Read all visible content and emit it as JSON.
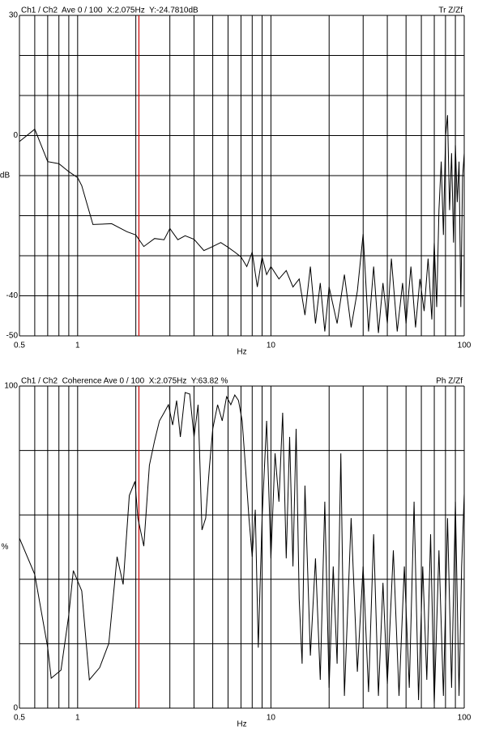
{
  "chart_data": [
    {
      "type": "line",
      "header_left": "Ch1 / Ch2  Ave 0 / 100  X:2.075Hz  Y:-24.7810dB",
      "header_right": "Tr Z/Zf",
      "xlabel": "Hz",
      "ylabel": "dB",
      "log_x": true,
      "color": "#000000",
      "cursor_x": 2.075,
      "cursor_color": "#cc0000",
      "xlim": [
        0.5,
        100
      ],
      "ylim": [
        -50,
        30
      ],
      "xticks": [
        0.5,
        1,
        10,
        100
      ],
      "yticks": [
        30,
        0,
        -40,
        -50
      ],
      "xgrid": [
        0.6,
        0.7,
        0.8,
        0.9,
        1,
        2,
        3,
        4,
        5,
        6,
        7,
        8,
        9,
        10,
        20,
        30,
        40,
        50,
        60,
        70,
        80,
        90,
        100
      ],
      "ygrid": [
        30,
        20,
        10,
        0,
        -10,
        -20,
        -30,
        -40,
        -50
      ],
      "x": [
        0.5,
        0.6,
        0.7,
        0.8,
        0.9,
        1.0,
        1.05,
        1.2,
        1.5,
        1.8,
        2.0,
        2.2,
        2.5,
        2.8,
        3.0,
        3.3,
        3.6,
        4.0,
        4.5,
        5.0,
        5.5,
        6.0,
        6.5,
        7,
        7.5,
        8,
        8.5,
        9,
        9.5,
        10,
        11,
        12,
        13,
        14,
        15,
        16,
        17,
        18,
        19,
        20,
        22,
        24,
        26,
        28,
        30,
        32,
        34,
        36,
        38,
        40,
        42,
        45,
        48,
        50,
        53,
        56,
        59,
        62,
        65,
        68,
        70,
        72,
        74,
        76,
        78,
        80,
        82,
        84,
        86,
        88,
        90,
        92,
        94,
        96,
        98,
        100
      ],
      "values": [
        -1.5,
        1.6,
        -6.5,
        -7,
        -9,
        -10.5,
        -12.5,
        -22.2,
        -22,
        -24,
        -24.8,
        -27.7,
        -25.7,
        -26,
        -23.2,
        -26,
        -25,
        -25.9,
        -28.7,
        -27.7,
        -26.7,
        -27.9,
        -29.1,
        -30.3,
        -32.7,
        -29.1,
        -37.8,
        -30.3,
        -34.7,
        -32.7,
        -35.8,
        -33.7,
        -37.8,
        -35.8,
        -44.8,
        -32.7,
        -46.9,
        -36.8,
        -48.9,
        -37.8,
        -46.9,
        -34.7,
        -47.9,
        -38.8,
        -24.6,
        -48.9,
        -32.7,
        -49.3,
        -36.8,
        -46.9,
        -30.7,
        -48.9,
        -36.8,
        -46.9,
        -32.7,
        -47.9,
        -35.8,
        -43.8,
        -30.7,
        -45.9,
        -26.7,
        -42.8,
        -18.6,
        -6.5,
        -24.8,
        -0.4,
        5.1,
        -18.6,
        -4.4,
        -26.7,
        -2.4,
        -16.6,
        -6.5,
        -42.8,
        -10.5,
        -4.4
      ]
    },
    {
      "type": "line",
      "header_left": "Ch1 / Ch2  Coherence Ave 0 / 100  X:2.075Hz  Y:63.82 %",
      "header_right": "Ph Z/Zf",
      "xlabel": "Hz",
      "ylabel": "%",
      "log_x": true,
      "color": "#000000",
      "cursor_x": 2.075,
      "cursor_color": "#cc0000",
      "xlim": [
        0.5,
        100
      ],
      "ylim": [
        0,
        100
      ],
      "xticks": [
        0.5,
        1,
        10,
        100
      ],
      "yticks": [
        100,
        0
      ],
      "xgrid": [
        0.6,
        0.7,
        0.8,
        0.9,
        1,
        2,
        3,
        4,
        5,
        6,
        7,
        8,
        9,
        10,
        20,
        30,
        40,
        50,
        60,
        70,
        80,
        90,
        100
      ],
      "ygrid": [
        100,
        80,
        60,
        40,
        20,
        0
      ],
      "x": [
        0.5,
        0.6,
        0.7,
        0.73,
        0.82,
        0.9,
        0.95,
        1.05,
        1.15,
        1.3,
        1.45,
        1.6,
        1.72,
        1.85,
        1.98,
        2.05,
        2.2,
        2.35,
        2.5,
        2.65,
        2.8,
        2.95,
        3.1,
        3.25,
        3.4,
        3.6,
        3.8,
        4.0,
        4.2,
        4.4,
        4.6,
        4.8,
        5.0,
        5.3,
        5.6,
        5.9,
        6.2,
        6.5,
        6.8,
        7.1,
        7.4,
        7.7,
        8.0,
        8.3,
        8.6,
        9.0,
        9.5,
        10,
        10.5,
        11,
        11.5,
        12,
        12.5,
        13,
        13.5,
        14,
        14.5,
        15,
        16,
        17,
        18,
        19,
        20,
        21,
        22,
        23,
        24,
        26,
        28,
        30,
        32,
        34,
        36,
        38,
        40,
        43,
        46,
        49,
        52,
        55,
        58,
        61,
        64,
        67,
        70,
        74,
        78,
        82,
        86,
        90,
        94,
        97,
        100
      ],
      "values": [
        52.8,
        41.5,
        18.8,
        9.3,
        11.8,
        28.9,
        42.7,
        36.4,
        8.8,
        12.6,
        20.1,
        47,
        38.4,
        66,
        70.4,
        59,
        50.3,
        75.4,
        83,
        89.2,
        91.7,
        94.2,
        87.9,
        95.5,
        84.2,
        98,
        97.5,
        84.2,
        94.2,
        55.3,
        59,
        74.6,
        86.7,
        94.2,
        89.2,
        96.7,
        94.2,
        97.2,
        95.5,
        89.2,
        74.1,
        59,
        47,
        61.6,
        18.8,
        59,
        89.2,
        46.5,
        79.1,
        64.1,
        91.7,
        46.5,
        84.2,
        44,
        86.7,
        33.9,
        13.8,
        69.1,
        16.3,
        46.5,
        8.8,
        64.1,
        6.3,
        44,
        13.8,
        79.1,
        3.8,
        59,
        11.3,
        44,
        5,
        54,
        3.8,
        38.9,
        7.5,
        49,
        3.8,
        44,
        6.3,
        64.1,
        2.5,
        44,
        8.8,
        54,
        1.3,
        49,
        3.8,
        59,
        6.3,
        64.1,
        3.8,
        44,
        66.6
      ]
    }
  ]
}
